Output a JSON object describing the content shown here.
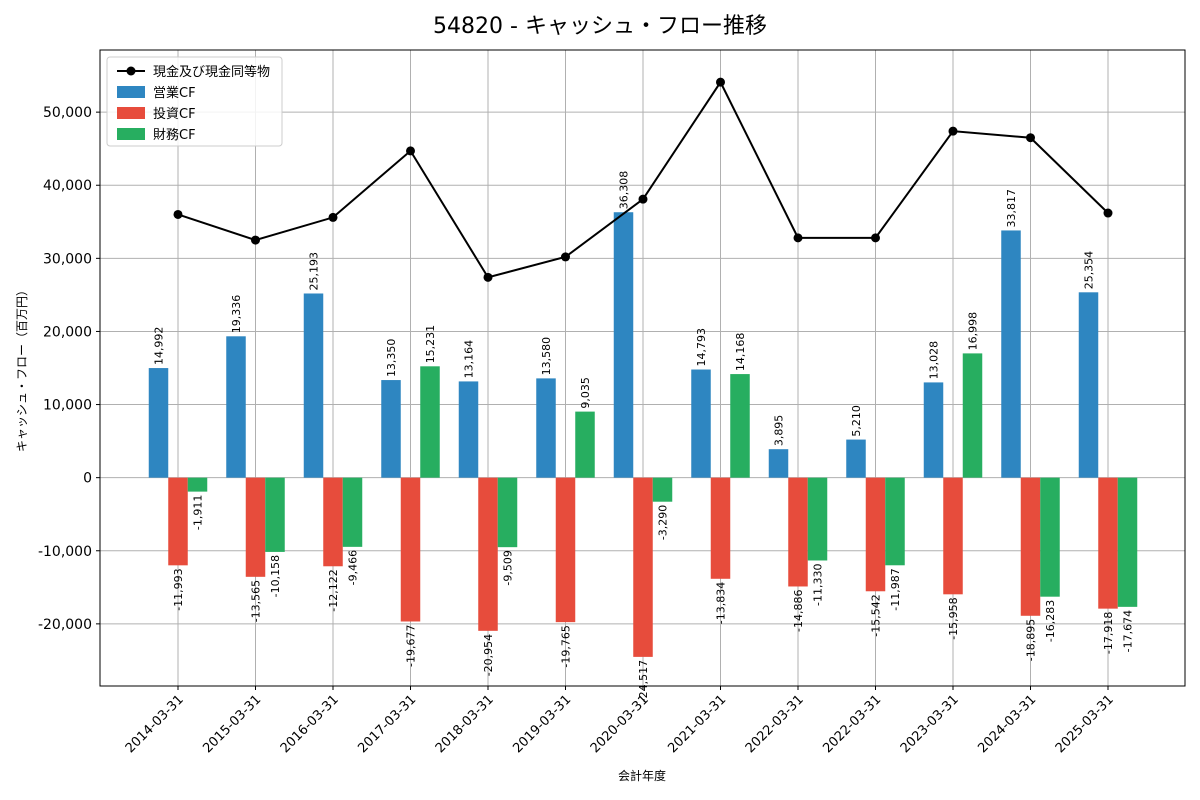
{
  "chart_data": {
    "type": "bar",
    "title": "54820 - キャッシュ・フロー推移",
    "xlabel": "会計年度",
    "ylabel": "キャッシュ・フロー（百万円）",
    "ylim": [
      -28500,
      58500
    ],
    "yticks": [
      -20000,
      -10000,
      0,
      10000,
      20000,
      30000,
      40000,
      50000
    ],
    "ytick_labels": [
      "-20,000",
      "-10,000",
      "0",
      "10,000",
      "20,000",
      "30,000",
      "40,000",
      "50,000"
    ],
    "grid": true,
    "legend_position": "top-left",
    "categories": [
      "2014-03-31",
      "2015-03-31",
      "2016-03-31",
      "2017-03-31",
      "2018-03-31",
      "2019-03-31",
      "2020-03-31",
      "2021-03-31",
      "2022-03-31",
      "2022-03-31",
      "2023-03-31",
      "2024-03-31",
      "2025-03-31"
    ],
    "series": [
      {
        "name": "営業CF",
        "kind": "bar",
        "color": "#2e86c1",
        "values": [
          14992,
          19336,
          25193,
          13350,
          13164,
          13580,
          36308,
          14793,
          3895,
          5210,
          13028,
          33817,
          25354
        ],
        "labels": [
          "14,992",
          "19,336",
          "25,193",
          "13,350",
          "13,164",
          "13,580",
          "36,308",
          "14,793",
          "3,895",
          "5,210",
          "13,028",
          "33,817",
          "25,354"
        ]
      },
      {
        "name": "投資CF",
        "kind": "bar",
        "color": "#e74c3c",
        "values": [
          -11993,
          -13565,
          -12122,
          -19677,
          -20954,
          -19765,
          -24517,
          -13834,
          -14886,
          -15542,
          -15958,
          -18895,
          -17918
        ],
        "labels": [
          "-11,993",
          "-13,565",
          "-12,122",
          "-19,677",
          "-20,954",
          "-19,765",
          "-24,517",
          "-13,834",
          "-14,886",
          "-15,542",
          "-15,958",
          "-18,895",
          "-17,918"
        ]
      },
      {
        "name": "財務CF",
        "kind": "bar",
        "color": "#27ae60",
        "values": [
          -1911,
          -10158,
          -9466,
          15231,
          -9509,
          9035,
          -3290,
          14168,
          -11330,
          -11987,
          16998,
          -16283,
          -17674
        ],
        "labels": [
          "-1,911",
          "-10,158",
          "-9,466",
          "15,231",
          "-9,509",
          "9,035",
          "-3,290",
          "14,168",
          "-11,330",
          "-11,987",
          "16,998",
          "-16,283",
          "-17,674"
        ]
      },
      {
        "name": "現金及び現金同等物",
        "kind": "line",
        "color": "#000000",
        "values": [
          36000,
          32500,
          35600,
          44700,
          27400,
          30200,
          38100,
          54100,
          32800,
          32800,
          47400,
          46500,
          36200
        ]
      }
    ]
  }
}
